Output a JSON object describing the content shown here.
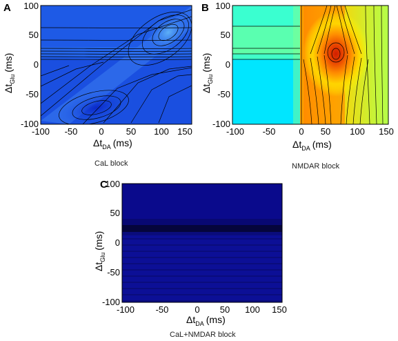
{
  "chart_data": [
    {
      "type": "heatmap",
      "panel_label": "A",
      "caption": "CaL block",
      "xlabel": {
        "delta": "Δ",
        "t": "t",
        "sub": "DA",
        "unit": "(ms)"
      },
      "ylabel": {
        "delta": "Δ",
        "t": "t",
        "sub": "Glu",
        "unit": "(ms)"
      },
      "xlim": [
        -100,
        150
      ],
      "ylim": [
        -100,
        100
      ],
      "xticks": [
        "-100",
        "-50",
        "0",
        "50",
        "100",
        "150"
      ],
      "yticks": [
        "-100",
        "-50",
        "0",
        "50",
        "100"
      ],
      "colormap": [
        "#0a28c8",
        "#1e5ae6",
        "#3a86f0",
        "#5eb0f6"
      ],
      "description_values": {
        "peak_center": [
          115,
          55
        ],
        "trough_center": [
          -10,
          -80
        ],
        "diagonal": "dt_glu ≈ dt_da",
        "band_dt_glu": [
          10,
          25
        ]
      }
    },
    {
      "type": "heatmap",
      "panel_label": "B",
      "caption": "NMDAR block",
      "xlabel": {
        "delta": "Δ",
        "t": "t",
        "sub": "DA",
        "unit": "(ms)"
      },
      "ylabel": {
        "delta": "Δ",
        "t": "t",
        "sub": "Glu",
        "unit": "(ms)"
      },
      "xlim": [
        -100,
        150
      ],
      "ylim": [
        -100,
        100
      ],
      "xticks": [
        "-100",
        "-50",
        "0",
        "50",
        "100",
        "150"
      ],
      "yticks": [
        "-100",
        "-50",
        "0",
        "50",
        "100"
      ],
      "colormap": [
        "#00e6ff",
        "#5affb4",
        "#ffff00",
        "#ff8c00",
        "#d21e00"
      ],
      "description_values": {
        "peak_center": [
          60,
          15
        ],
        "left_region": "x < 0 uniform"
      }
    },
    {
      "type": "heatmap",
      "panel_label": "C",
      "caption": "CaL+NMDAR block",
      "xlabel": {
        "delta": "Δ",
        "t": "t",
        "sub": "DA",
        "unit": "(ms)"
      },
      "ylabel": {
        "delta": "Δ",
        "t": "t",
        "sub": "Glu",
        "unit": "(ms)"
      },
      "xlim": [
        -100,
        150
      ],
      "ylim": [
        -100,
        100
      ],
      "xticks": [
        "-100",
        "-50",
        "0",
        "50",
        "100",
        "150"
      ],
      "yticks": [
        "-100",
        "-50",
        "0",
        "50",
        "100"
      ],
      "colormap": [
        "#0a0a8c",
        "#101ba6"
      ],
      "description_values": {
        "band_dt_glu": [
          15,
          25
        ],
        "uniform_in_dt_da": true
      }
    }
  ]
}
